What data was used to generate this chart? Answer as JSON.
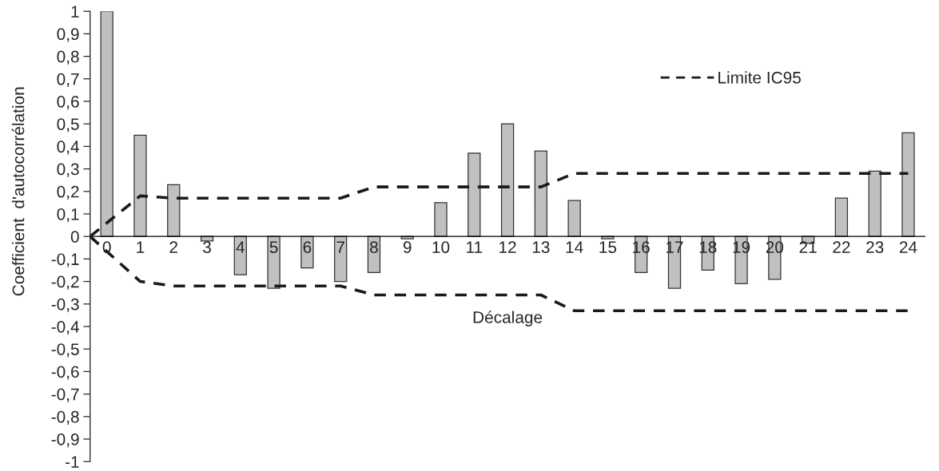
{
  "chart_data": {
    "type": "bar",
    "xlabel": "Décalage",
    "ylabel": "Coefficient  d'autocorrélation",
    "x": [
      0,
      1,
      2,
      3,
      4,
      5,
      6,
      7,
      8,
      9,
      10,
      11,
      12,
      13,
      14,
      15,
      16,
      17,
      18,
      19,
      20,
      21,
      22,
      23,
      24
    ],
    "xlim": [
      -0.5,
      24.5
    ],
    "xticks": [
      0,
      1,
      2,
      3,
      4,
      5,
      6,
      7,
      8,
      9,
      10,
      11,
      12,
      13,
      14,
      15,
      16,
      17,
      18,
      19,
      20,
      21,
      22,
      23,
      24
    ],
    "ylim": [
      -1,
      1
    ],
    "yticks": [
      {
        "value": -1,
        "label": "-1"
      },
      {
        "value": -0.9,
        "label": "-0,9"
      },
      {
        "value": -0.8,
        "label": "-0,8"
      },
      {
        "value": -0.7,
        "label": "-0,7"
      },
      {
        "value": -0.6,
        "label": "-0,6"
      },
      {
        "value": -0.5,
        "label": "-0,5"
      },
      {
        "value": -0.4,
        "label": "-0,4"
      },
      {
        "value": -0.3,
        "label": "-0,3"
      },
      {
        "value": -0.2,
        "label": "-0,2"
      },
      {
        "value": -0.1,
        "label": "-0,1"
      },
      {
        "value": 0,
        "label": "0"
      },
      {
        "value": 0.1,
        "label": "0,1"
      },
      {
        "value": 0.2,
        "label": "0,2"
      },
      {
        "value": 0.3,
        "label": "0,3"
      },
      {
        "value": 0.4,
        "label": "0,4"
      },
      {
        "value": 0.5,
        "label": "0,5"
      },
      {
        "value": 0.6,
        "label": "0,6"
      },
      {
        "value": 0.7,
        "label": "0,7"
      },
      {
        "value": 0.8,
        "label": "0,8"
      },
      {
        "value": 0.9,
        "label": "0,9"
      },
      {
        "value": 1,
        "label": "1"
      }
    ],
    "series": [
      {
        "color": "#bfc0c2",
        "values": [
          1.0,
          0.45,
          0.23,
          -0.02,
          -0.17,
          -0.23,
          -0.14,
          -0.2,
          -0.16,
          -0.01,
          0.15,
          0.37,
          0.5,
          0.38,
          0.16,
          -0.01,
          -0.16,
          -0.23,
          -0.15,
          -0.21,
          -0.19,
          -0.03,
          0.17,
          0.29,
          0.46
        ]
      },
      {
        "type": "line",
        "name": "Limite IC95",
        "color": "#1a1a1a",
        "line_style": "dashed",
        "x": [
          -0.5,
          1,
          2,
          3,
          4,
          5,
          6,
          7,
          8,
          9,
          10,
          11,
          12,
          13,
          14,
          15,
          16,
          17,
          18,
          19,
          20,
          21,
          22,
          23,
          24
        ],
        "values": [
          0,
          0.18,
          0.17,
          0.17,
          0.17,
          0.17,
          0.17,
          0.17,
          0.22,
          0.22,
          0.22,
          0.22,
          0.22,
          0.22,
          0.28,
          0.28,
          0.28,
          0.28,
          0.28,
          0.28,
          0.28,
          0.28,
          0.28,
          0.28,
          0.28
        ]
      },
      {
        "type": "line",
        "color": "#1a1a1a",
        "line_style": "dashed",
        "x": [
          -0.5,
          1,
          2,
          3,
          4,
          5,
          6,
          7,
          8,
          9,
          10,
          11,
          12,
          13,
          14,
          15,
          16,
          17,
          18,
          19,
          20,
          21,
          22,
          23,
          24
        ],
        "values": [
          0,
          -0.2,
          -0.22,
          -0.22,
          -0.22,
          -0.22,
          -0.22,
          -0.22,
          -0.26,
          -0.26,
          -0.26,
          -0.26,
          -0.26,
          -0.26,
          -0.33,
          -0.33,
          -0.33,
          -0.33,
          -0.33,
          -0.33,
          -0.33,
          -0.33,
          -0.33,
          -0.33,
          -0.33
        ]
      }
    ],
    "legend": "top right",
    "grid": false
  }
}
